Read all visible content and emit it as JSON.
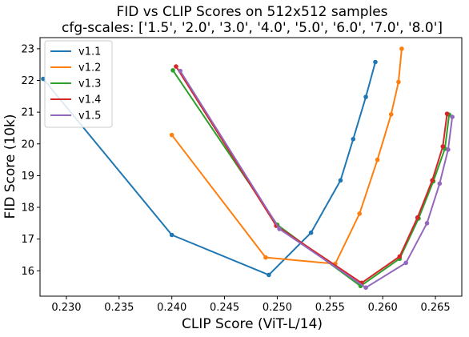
{
  "chart_data": {
    "type": "line",
    "title": "FID vs CLIP Scores on 512x512 samples",
    "subtitle": "cfg-scales: ['1.5', '2.0', '3.0', '4.0', '5.0', '6.0', '7.0', '8.0']",
    "xlabel": "CLIP Score (ViT-L/14)",
    "ylabel": "FID Score (10k)",
    "xlim": [
      0.2275,
      0.2675
    ],
    "ylim": [
      15.2,
      23.35
    ],
    "xticks": [
      0.23,
      0.235,
      0.24,
      0.245,
      0.25,
      0.255,
      0.26,
      0.265
    ],
    "xtick_labels": [
      "0.230",
      "0.235",
      "0.240",
      "0.245",
      "0.250",
      "0.255",
      "0.260",
      "0.265"
    ],
    "yticks": [
      16,
      17,
      18,
      19,
      20,
      21,
      22,
      23
    ],
    "ytick_labels": [
      "16",
      "17",
      "18",
      "19",
      "20",
      "21",
      "22",
      "23"
    ],
    "grid": false,
    "legend": "top-left",
    "series": [
      {
        "name": "v1.1",
        "color": "#1f77b4",
        "x": [
          0.2278,
          0.24,
          0.2492,
          0.2532,
          0.256,
          0.2572,
          0.2584,
          0.2593
        ],
        "y": [
          22.05,
          17.13,
          15.87,
          17.2,
          18.85,
          20.15,
          21.48,
          22.58
        ]
      },
      {
        "name": "v1.2",
        "color": "#ff7f0e",
        "x": [
          0.24,
          0.2489,
          0.2555,
          0.2578,
          0.2595,
          0.2608,
          0.2615,
          0.2618
        ],
        "y": [
          20.28,
          16.42,
          16.22,
          17.8,
          19.5,
          20.93,
          21.95,
          23.0
        ]
      },
      {
        "name": "v1.3",
        "color": "#2ca02c",
        "x": [
          0.2401,
          0.25,
          0.2579,
          0.2616,
          0.2634,
          0.2648,
          0.2659,
          0.2663
        ],
        "y": [
          22.32,
          17.45,
          15.52,
          16.38,
          17.65,
          18.82,
          19.85,
          20.92
        ]
      },
      {
        "name": "v1.4",
        "color": "#d62728",
        "x": [
          0.2404,
          0.2499,
          0.258,
          0.2616,
          0.2633,
          0.2647,
          0.2657,
          0.2661
        ],
        "y": [
          22.44,
          17.42,
          15.62,
          16.45,
          17.68,
          18.85,
          19.92,
          20.95
        ]
      },
      {
        "name": "v1.5",
        "color": "#9467bd",
        "x": [
          0.2408,
          0.2502,
          0.2584,
          0.2622,
          0.2642,
          0.2654,
          0.2662,
          0.2666
        ],
        "y": [
          22.3,
          17.32,
          15.47,
          16.25,
          17.5,
          18.75,
          19.82,
          20.85
        ]
      }
    ]
  }
}
